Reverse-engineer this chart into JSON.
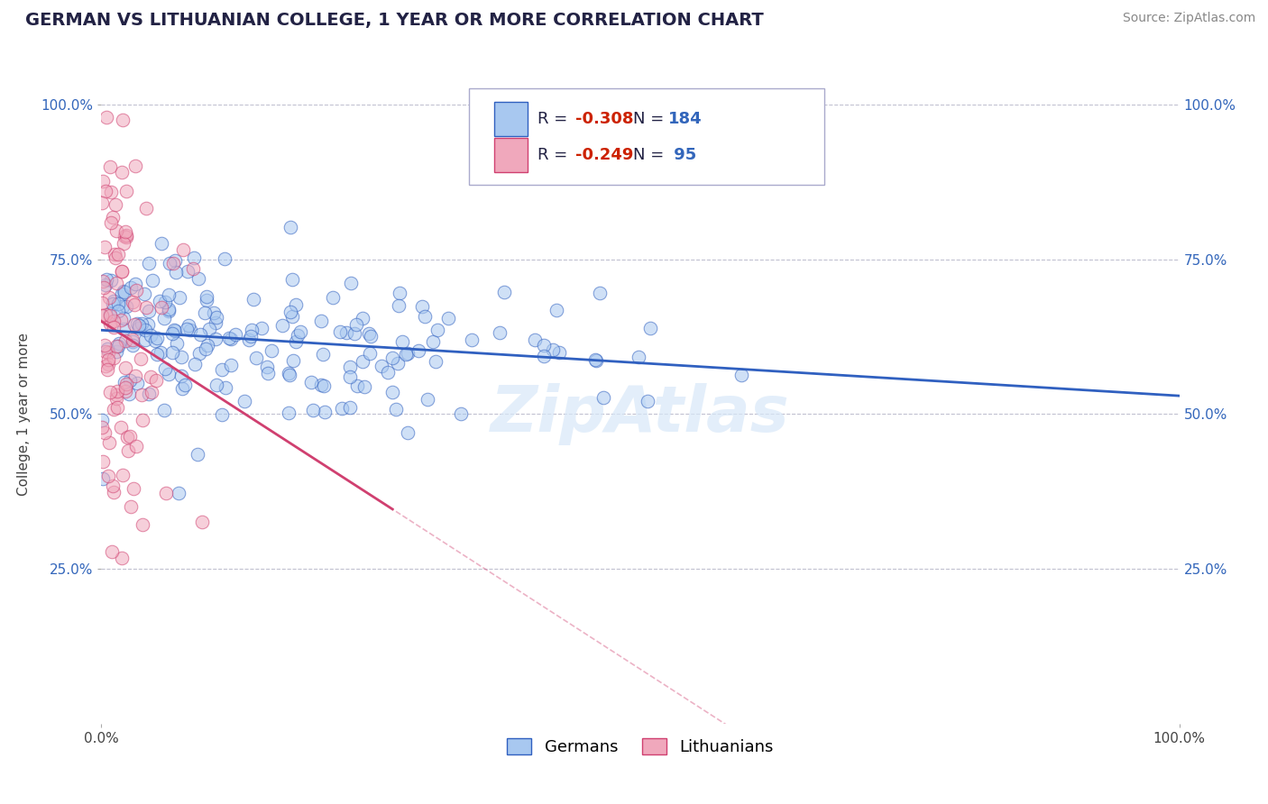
{
  "title": "GERMAN VS LITHUANIAN COLLEGE, 1 YEAR OR MORE CORRELATION CHART",
  "source_text": "Source: ZipAtlas.com",
  "ylabel": "College, 1 year or more",
  "xlim": [
    0.0,
    1.0
  ],
  "ylim": [
    0.0,
    1.0
  ],
  "xtick_labels": [
    "0.0%",
    "100.0%"
  ],
  "ytick_labels": [
    "25.0%",
    "50.0%",
    "75.0%",
    "100.0%"
  ],
  "ytick_positions": [
    0.25,
    0.5,
    0.75,
    1.0
  ],
  "german_R": -0.308,
  "german_N": 184,
  "lithuanian_R": -0.249,
  "lithuanian_N": 95,
  "german_color": "#A8C8F0",
  "lithuanian_color": "#F0A8BC",
  "german_line_color": "#3060C0",
  "lithuanian_line_color": "#D04070",
  "watermark_text": "ZipAtlas",
  "background_color": "#FFFFFF",
  "grid_color": "#C0C0D0",
  "title_fontsize": 14,
  "label_fontsize": 11,
  "tick_fontsize": 11,
  "legend_fontsize": 13,
  "source_fontsize": 10
}
